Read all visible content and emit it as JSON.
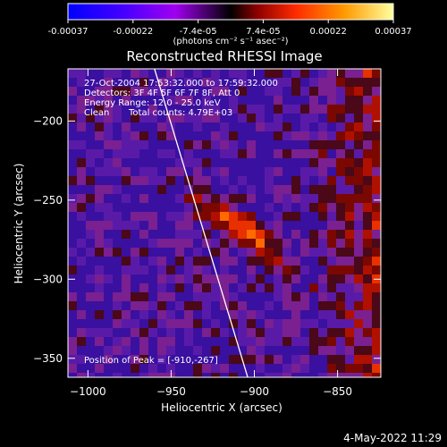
{
  "colorbar": {
    "tick_labels": [
      "-0.00037",
      "-0.00022",
      "-7.4e-05",
      "7.4e-05",
      "0.00022",
      "0.00037"
    ],
    "unit_label": "(photons cm⁻² s⁻¹ asec⁻²)",
    "range": [
      -0.00037,
      0.00037
    ]
  },
  "chart_data": {
    "type": "heatmap",
    "title": "Reconstructed RHESSI Image",
    "xlabel": "Heliocentric X (arcsec)",
    "ylabel": "Heliocentric Y (arcsec)",
    "xlim": [
      -1012,
      -824
    ],
    "ylim": [
      -362,
      -167
    ],
    "x_ticks": [
      -1000,
      -950,
      -900,
      -850
    ],
    "y_ticks": [
      -200,
      -250,
      -300,
      -350
    ],
    "x_tick_labels": [
      "−1000",
      "−950",
      "−900",
      "−850"
    ],
    "y_tick_labels": [
      "−200",
      "−250",
      "−300",
      "−350"
    ],
    "peak": [
      -910,
      -267
    ],
    "limb_line": [
      [
        -960,
        -167
      ],
      [
        -904,
        -362
      ]
    ],
    "annotations": {
      "time": "27-Oct-2004 17:53:32.000 to 17:59:32.000",
      "detectors": "Detectors: 3F 4F 5F 6F 7F 8F, Att 0",
      "energy": "Energy Range: 12.0 - 25.0 keV",
      "method": "Clean",
      "counts": "Total counts: 4.79E+03",
      "peak_text": "Position of Peak = [-910,-267]"
    }
  },
  "footer": {
    "date": "4-May-2022 11:29"
  }
}
